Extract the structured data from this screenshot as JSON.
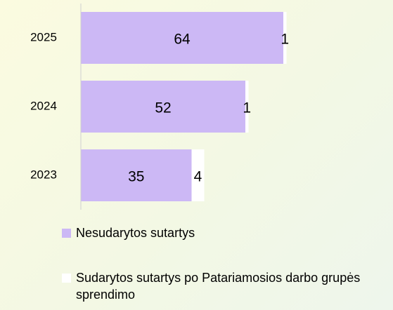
{
  "chart_data": {
    "type": "stacked_barh",
    "categories": [
      "2025",
      "2024",
      "2023"
    ],
    "series": [
      {
        "name": "Nesudarytos sutartys",
        "color": "#ccb8f5",
        "values": [
          64,
          52,
          35
        ]
      },
      {
        "name": "Sudarytos sutartys po Patariamosios darbo grupės sprendimo",
        "color": "#ffffff",
        "values": [
          1,
          1,
          4
        ]
      }
    ]
  }
}
